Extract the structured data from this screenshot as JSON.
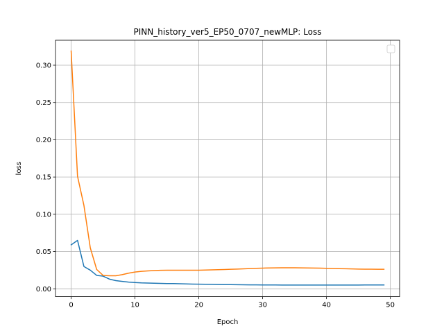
{
  "chart_data": {
    "type": "line",
    "title": "PINN_history_ver5_EP50_0707_newMLP: Loss",
    "xlabel": "Epoch",
    "ylabel": "loss",
    "xlim": [
      -2.45,
      51.45
    ],
    "ylim": [
      -0.0105,
      0.3335
    ],
    "xticks": [
      0,
      10,
      20,
      30,
      40,
      50
    ],
    "yticks": [
      0.0,
      0.05,
      0.1,
      0.15,
      0.2,
      0.25,
      0.3
    ],
    "xtick_labels": [
      "0",
      "10",
      "20",
      "30",
      "40",
      "50"
    ],
    "ytick_labels": [
      "0.00",
      "0.05",
      "0.10",
      "0.15",
      "0.20",
      "0.25",
      "0.30"
    ],
    "grid": true,
    "legend": "top-right, empty",
    "series": [
      {
        "color": "#1f77b4",
        "x": [
          0,
          1,
          2,
          3,
          4,
          5,
          6,
          7,
          8,
          9,
          10,
          11,
          12,
          13,
          14,
          15,
          16,
          17,
          18,
          19,
          20,
          21,
          22,
          23,
          24,
          25,
          26,
          27,
          28,
          29,
          30,
          31,
          32,
          33,
          34,
          35,
          36,
          37,
          38,
          39,
          40,
          41,
          42,
          43,
          44,
          45,
          46,
          47,
          48,
          49
        ],
        "values": [
          0.059,
          0.065,
          0.03,
          0.025,
          0.018,
          0.017,
          0.013,
          0.011,
          0.01,
          0.009,
          0.0085,
          0.008,
          0.0078,
          0.0075,
          0.0073,
          0.0071,
          0.007,
          0.0068,
          0.0066,
          0.0064,
          0.0062,
          0.0061,
          0.006,
          0.0058,
          0.0057,
          0.0056,
          0.0055,
          0.0054,
          0.0053,
          0.0053,
          0.0052,
          0.0052,
          0.0052,
          0.0051,
          0.0051,
          0.0051,
          0.0051,
          0.0051,
          0.0051,
          0.0051,
          0.0051,
          0.0051,
          0.0051,
          0.0051,
          0.0051,
          0.0051,
          0.0052,
          0.0052,
          0.0052,
          0.0052
        ]
      },
      {
        "color": "#ff7f0e",
        "x": [
          0,
          1,
          2,
          3,
          4,
          5,
          6,
          7,
          8,
          9,
          10,
          11,
          12,
          13,
          14,
          15,
          16,
          17,
          18,
          19,
          20,
          21,
          22,
          23,
          24,
          25,
          26,
          27,
          28,
          29,
          30,
          31,
          32,
          33,
          34,
          35,
          36,
          37,
          38,
          39,
          40,
          41,
          42,
          43,
          44,
          45,
          46,
          47,
          48,
          49
        ],
        "values": [
          0.319,
          0.151,
          0.112,
          0.055,
          0.026,
          0.018,
          0.0175,
          0.0175,
          0.019,
          0.021,
          0.0225,
          0.0235,
          0.024,
          0.0245,
          0.0248,
          0.025,
          0.025,
          0.025,
          0.025,
          0.025,
          0.025,
          0.0252,
          0.0254,
          0.0256,
          0.0259,
          0.0262,
          0.0265,
          0.0268,
          0.0272,
          0.0275,
          0.0278,
          0.028,
          0.0281,
          0.0282,
          0.0282,
          0.0282,
          0.0281,
          0.028,
          0.0279,
          0.0277,
          0.0275,
          0.0273,
          0.0271,
          0.0269,
          0.0267,
          0.0265,
          0.0264,
          0.0263,
          0.0262,
          0.0262
        ]
      }
    ]
  }
}
